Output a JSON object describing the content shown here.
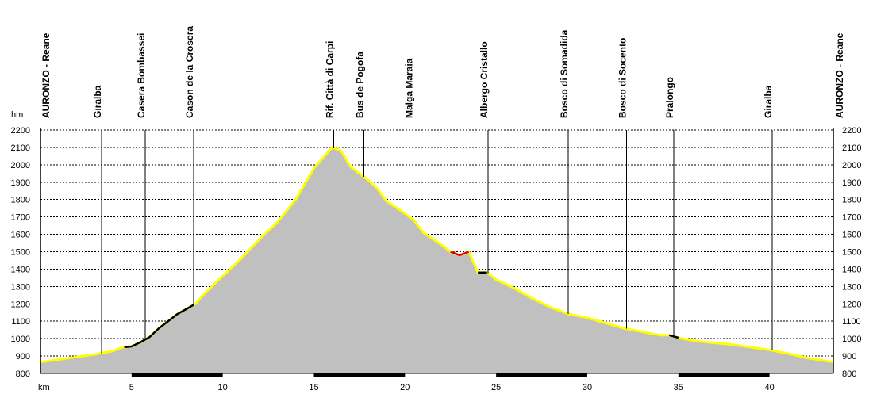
{
  "chart_data": {
    "type": "area",
    "title": "",
    "xlabel": "km",
    "ylabel": "hm",
    "xlim": [
      0,
      43.5
    ],
    "ylim": [
      800,
      2200
    ],
    "x_ticks": [
      "5",
      "10",
      "15",
      "20",
      "25",
      "30",
      "35",
      "40"
    ],
    "y_ticks": [
      "800",
      "900",
      "1000",
      "1100",
      "1200",
      "1300",
      "1400",
      "1500",
      "1600",
      "1700",
      "1800",
      "1900",
      "2000",
      "2100",
      "2200"
    ],
    "grid": true,
    "fill_color": "#c0c0c0",
    "line_colors": {
      "default": "#ffff00",
      "black": "#000000",
      "red": "#e00000"
    },
    "profile": {
      "x": [
        0,
        1,
        2,
        3,
        4,
        4.5,
        5,
        5.5,
        6,
        6.5,
        7,
        7.5,
        8,
        8.5,
        9,
        10,
        11,
        12,
        13,
        14,
        15,
        16,
        16.5,
        17,
        18,
        18.5,
        19,
        20,
        20.5,
        21,
        22,
        22.5,
        23,
        23.5,
        24,
        24.5,
        25,
        26,
        27,
        28,
        29,
        30,
        31,
        32,
        33,
        34,
        34.5,
        35,
        36,
        37,
        38,
        39,
        40,
        41,
        42,
        43.5
      ],
      "y": [
        865,
        880,
        895,
        910,
        930,
        950,
        955,
        980,
        1010,
        1060,
        1100,
        1140,
        1170,
        1200,
        1260,
        1360,
        1460,
        1570,
        1670,
        1800,
        1980,
        2100,
        2080,
        1990,
        1910,
        1860,
        1790,
        1720,
        1680,
        1610,
        1540,
        1500,
        1480,
        1500,
        1380,
        1380,
        1340,
        1290,
        1230,
        1180,
        1140,
        1120,
        1090,
        1060,
        1040,
        1020,
        1020,
        1005,
        985,
        975,
        965,
        950,
        935,
        915,
        890,
        865
      ]
    },
    "highlight_segments": [
      {
        "color": "black",
        "x_range": [
          4.6,
          8.4
        ]
      },
      {
        "color": "red",
        "x_range": [
          22.5,
          23.5
        ]
      },
      {
        "color": "black",
        "x_range": [
          24.0,
          24.5
        ]
      },
      {
        "color": "black",
        "x_range": [
          34.5,
          35.0
        ]
      }
    ],
    "waypoints": [
      {
        "name": "AURONZO - Reane",
        "km": 0,
        "edge": "left"
      },
      {
        "name": "Giralba",
        "km": 3.35
      },
      {
        "name": "Casera Bombassei",
        "km": 5.75
      },
      {
        "name": "Cason de la Crosera",
        "km": 8.4
      },
      {
        "name": "Rif. Città di Carpi",
        "km": 16.1
      },
      {
        "name": "Bus de Pogofa",
        "km": 17.75
      },
      {
        "name": "Malga Maraia",
        "km": 20.45
      },
      {
        "name": "Albergo Cristallo",
        "km": 24.55
      },
      {
        "name": "Bosco di Somadida",
        "km": 28.95
      },
      {
        "name": "Bosco di Socento",
        "km": 32.15
      },
      {
        "name": "Pralongo",
        "km": 34.75
      },
      {
        "name": "Giralba",
        "km": 40.15
      },
      {
        "name": "AURONZO - Reane",
        "km": 43.5,
        "edge": "right"
      }
    ]
  }
}
